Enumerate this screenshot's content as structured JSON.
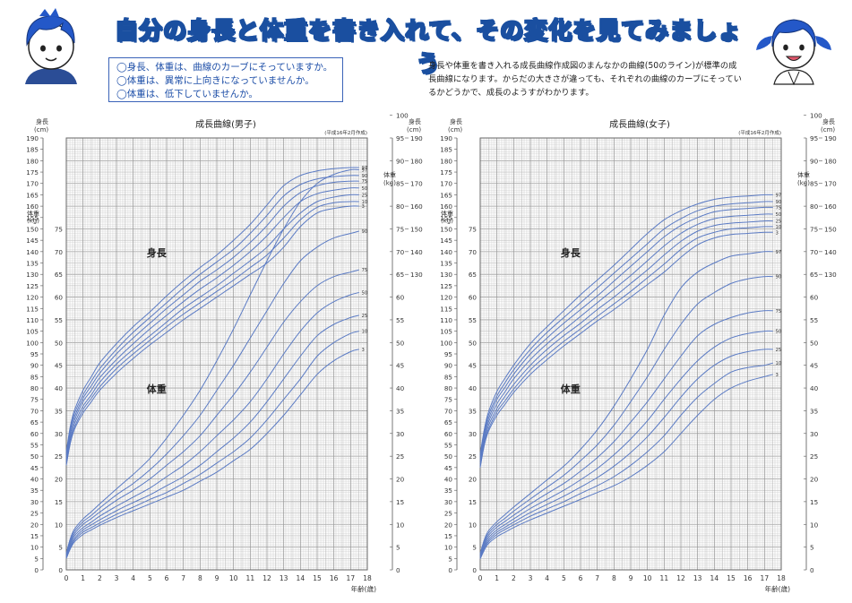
{
  "header": {
    "title": "自分の身長と体重を書き入れて、その変化を見てみましょう",
    "checklist": [
      "◯身長、体重は、曲線のカーブにそっていますか。",
      "◯体重は、異常に上向きになっていませんか。",
      "◯体重は、低下していませんか。"
    ],
    "explanation": "身長や体重を書き入れる成長曲線作成図のまんなかの曲線(50のライン)が標準の成長曲線になります。からだの大きさが違っても、それぞれの曲線のカーブにそっているかどうかで、成長のようすがわかります。",
    "boy_icon": "boy-face-icon",
    "girl_icon": "girl-face-icon"
  },
  "colors": {
    "curve": "#5b7bc4",
    "grid_minor": "#c9c9c9",
    "grid_major": "#9a9a9a",
    "title": "#1a4fa0"
  },
  "chart_data": [
    {
      "type": "line",
      "title": "成長曲線(男子)",
      "note": "(平成16年2月作成)",
      "xlabel": "年齢(歳)",
      "height_axis_label": "身長\n(cm)",
      "weight_axis_label": "体重\n(kg)",
      "height_region_label": "身長",
      "weight_region_label": "体重",
      "xlim": [
        0,
        18
      ],
      "height_ylim": [
        0,
        190
      ],
      "weight_ylim": [
        0,
        75
      ],
      "x_ticks": [
        0,
        1,
        2,
        3,
        4,
        5,
        6,
        7,
        8,
        9,
        10,
        11,
        12,
        13,
        14,
        15,
        16,
        17,
        18
      ],
      "left_outer_ticks": [
        0,
        5,
        10,
        15,
        20,
        25,
        30,
        35,
        40,
        45,
        50,
        55,
        60,
        65,
        70,
        75,
        80,
        85,
        90,
        95,
        100,
        105,
        110,
        115,
        120,
        125,
        130,
        135,
        140,
        145,
        150,
        155,
        160,
        165,
        170,
        175,
        180,
        185,
        190
      ],
      "left_weight_ticks": [
        0,
        5,
        10,
        15,
        20,
        25,
        30,
        35,
        40,
        45,
        50,
        55,
        60,
        65,
        70,
        75
      ],
      "right_weight_ticks": [
        0,
        5,
        10,
        15,
        20,
        25,
        30,
        35,
        40,
        45,
        50,
        55,
        60,
        65,
        70,
        75,
        80,
        85,
        90,
        95,
        100
      ],
      "right_height_ticks": [
        130,
        140,
        150,
        160,
        170,
        180,
        190
      ],
      "x": [
        0,
        0.25,
        0.5,
        1,
        1.5,
        2,
        3,
        4,
        5,
        6,
        7,
        8,
        9,
        10,
        11,
        12,
        13,
        14,
        15,
        16,
        17,
        17.5
      ],
      "height_series": [
        {
          "name": "3",
          "values": [
            46,
            56,
            62,
            69,
            74,
            79,
            86.5,
            93,
            99,
            104.5,
            110,
            115,
            120,
            125,
            130,
            135,
            142,
            151,
            157,
            159,
            160,
            160
          ]
        },
        {
          "name": "10",
          "values": [
            47,
            57,
            63,
            70.5,
            75.5,
            80.5,
            88.5,
            95,
            101,
            107,
            112.5,
            117.5,
            122.5,
            127.5,
            133,
            138.5,
            146,
            154,
            159.5,
            161.5,
            162,
            162
          ]
        },
        {
          "name": "25",
          "values": [
            48,
            58.5,
            64.5,
            72,
            77,
            82.5,
            90.5,
            97,
            103,
            109,
            115,
            120,
            125,
            130.5,
            136,
            142,
            150,
            157,
            162,
            164,
            165,
            165
          ]
        },
        {
          "name": "50",
          "values": [
            49,
            60,
            66,
            74,
            79,
            84.5,
            92.5,
            99.5,
            106,
            112,
            118,
            123.5,
            128.5,
            134,
            140,
            147,
            155,
            162,
            165.5,
            167,
            168,
            168
          ]
        },
        {
          "name": "75",
          "values": [
            50,
            61.5,
            67.5,
            75.5,
            81,
            86.5,
            95,
            102,
            108.5,
            115,
            121,
            127,
            132,
            137.5,
            144,
            151.5,
            160,
            166,
            169,
            170.5,
            171,
            171
          ]
        },
        {
          "name": "90",
          "values": [
            51,
            62.5,
            69,
            77,
            83,
            88.5,
            97,
            104.5,
            111,
            117.5,
            124,
            130,
            135.5,
            141,
            148,
            156,
            164.5,
            169.5,
            172,
            173,
            173.5,
            173.5
          ]
        },
        {
          "name": "97",
          "values": [
            52,
            63.5,
            70.5,
            79,
            85,
            91,
            99.5,
            107,
            113.5,
            120.5,
            127,
            133,
            138.5,
            145,
            152,
            160.5,
            169,
            173.5,
            175.5,
            176.5,
            177,
            177
          ]
        }
      ],
      "weight_series": [
        {
          "name": "3",
          "values": [
            2.5,
            4.7,
            6.2,
            7.8,
            8.8,
            9.8,
            11.5,
            13,
            14.5,
            16,
            17.5,
            19.5,
            21.5,
            24,
            26.5,
            30,
            34,
            38.5,
            43,
            46,
            48,
            48.5
          ]
        },
        {
          "name": "10",
          "values": [
            2.7,
            5,
            6.6,
            8.3,
            9.3,
            10.3,
            12.2,
            13.8,
            15.5,
            17,
            19,
            21,
            23.5,
            26,
            29,
            33,
            37.5,
            42,
            47,
            50,
            52,
            52.5
          ]
        },
        {
          "name": "25",
          "values": [
            2.9,
            5.4,
            7,
            8.8,
            9.9,
            11,
            13,
            14.8,
            16.5,
            18.5,
            20.5,
            23,
            26,
            29,
            32.5,
            37,
            42,
            47,
            51.5,
            54,
            55.5,
            56
          ]
        },
        {
          "name": "50",
          "values": [
            3.1,
            5.8,
            7.5,
            9.3,
            10.5,
            11.8,
            14,
            16,
            18,
            20.5,
            23,
            26,
            29.5,
            33,
            37,
            42,
            47.5,
            52.5,
            56.5,
            59,
            60.5,
            61
          ]
        },
        {
          "name": "75",
          "values": [
            3.3,
            6.2,
            8,
            10,
            11.3,
            12.7,
            15.3,
            17.5,
            20,
            23,
            26,
            29.5,
            34,
            38.5,
            43.5,
            49,
            54.5,
            59,
            62.5,
            64.5,
            65.5,
            66
          ]
        },
        {
          "name": "90",
          "values": [
            3.5,
            6.6,
            8.5,
            10.6,
            12,
            13.6,
            16.5,
            19,
            22,
            25.5,
            29.5,
            34,
            39.5,
            45,
            51,
            57,
            63,
            68,
            71,
            73,
            74,
            74.5
          ]
        },
        {
          "name": "97",
          "values": [
            3.7,
            7,
            9,
            11.2,
            12.8,
            14.5,
            17.8,
            21,
            24.5,
            29,
            34,
            39.5,
            46,
            53,
            60.5,
            68,
            75,
            81,
            85,
            87,
            88,
            88
          ]
        }
      ]
    },
    {
      "type": "line",
      "title": "成長曲線(女子)",
      "note": "(平成16年2月作成)",
      "xlabel": "年齢(歳)",
      "height_axis_label": "身長\n(cm)",
      "weight_axis_label": "体重\n(kg)",
      "height_region_label": "身長",
      "weight_region_label": "体重",
      "xlim": [
        0,
        18
      ],
      "height_ylim": [
        0,
        190
      ],
      "weight_ylim": [
        0,
        75
      ],
      "x_ticks": [
        0,
        1,
        2,
        3,
        4,
        5,
        6,
        7,
        8,
        9,
        10,
        11,
        12,
        13,
        14,
        15,
        16,
        17,
        18
      ],
      "left_outer_ticks": [
        0,
        5,
        10,
        15,
        20,
        25,
        30,
        35,
        40,
        45,
        50,
        55,
        60,
        65,
        70,
        75,
        80,
        85,
        90,
        95,
        100,
        105,
        110,
        115,
        120,
        125,
        130,
        135,
        140,
        145,
        150,
        155,
        160,
        165,
        170,
        175,
        180,
        185,
        190
      ],
      "left_weight_ticks": [
        0,
        5,
        10,
        15,
        20,
        25,
        30,
        35,
        40,
        45,
        50,
        55,
        60,
        65,
        70,
        75
      ],
      "right_weight_ticks": [
        0,
        5,
        10,
        15,
        20,
        25,
        30,
        35,
        40,
        45,
        50,
        55,
        60,
        65,
        70,
        75,
        80,
        85,
        90,
        95,
        100
      ],
      "right_height_ticks": [
        130,
        140,
        150,
        160,
        170,
        180,
        190
      ],
      "x": [
        0,
        0.25,
        0.5,
        1,
        1.5,
        2,
        3,
        4,
        5,
        6,
        7,
        8,
        9,
        10,
        11,
        12,
        13,
        14,
        15,
        16,
        17,
        17.5
      ],
      "height_series": [
        {
          "name": "3",
          "values": [
            45,
            55,
            61,
            68,
            73,
            78,
            86,
            92.5,
            98.5,
            104,
            109.5,
            114.5,
            120,
            125.5,
            131,
            137.5,
            143,
            146,
            147.5,
            148,
            148.5,
            148.5
          ]
        },
        {
          "name": "10",
          "values": [
            46,
            56,
            62,
            69.5,
            74.5,
            79.5,
            88,
            94.5,
            100.5,
            106,
            111.5,
            117,
            122.5,
            128.5,
            134.5,
            141,
            146,
            148.5,
            150,
            150.5,
            151,
            151
          ]
        },
        {
          "name": "25",
          "values": [
            47,
            57,
            63.5,
            71,
            76.5,
            81.5,
            90,
            97,
            103,
            108.5,
            114.5,
            120,
            126,
            132,
            138.5,
            144.5,
            149,
            151.5,
            152.5,
            153,
            153.5,
            153.5
          ]
        },
        {
          "name": "50",
          "values": [
            48,
            58.5,
            65,
            73,
            78.5,
            84,
            92.5,
            99.5,
            105.5,
            111.5,
            117.5,
            123.5,
            129.5,
            136,
            142.5,
            148,
            152,
            154.5,
            155.5,
            156,
            156.5,
            156.5
          ]
        },
        {
          "name": "75",
          "values": [
            49,
            60,
            66.5,
            75,
            80.5,
            86,
            95,
            102,
            108.5,
            114.5,
            120.5,
            127,
            133.5,
            140,
            146.5,
            151.5,
            155,
            157.5,
            158.5,
            159,
            159.5,
            159.5
          ]
        },
        {
          "name": "90",
          "values": [
            50,
            61,
            68,
            76.5,
            82.5,
            88,
            97,
            104.5,
            111,
            117.5,
            124,
            130.5,
            137,
            143.5,
            150,
            154.5,
            158,
            160,
            161,
            161.5,
            162,
            162
          ]
        },
        {
          "name": "97",
          "values": [
            51,
            62,
            69.5,
            78.5,
            84.5,
            90,
            99.5,
            107,
            114,
            121,
            127.5,
            134,
            141,
            148,
            154,
            158,
            161,
            163,
            164,
            164.5,
            165,
            165
          ]
        }
      ],
      "weight_series": [
        {
          "name": "3",
          "values": [
            2.4,
            4.4,
            5.8,
            7.3,
            8.3,
            9.3,
            11,
            12.5,
            14,
            15.5,
            17,
            18.5,
            20.5,
            23,
            26,
            30,
            34,
            37.5,
            40,
            41.5,
            42.5,
            43
          ]
        },
        {
          "name": "10",
          "values": [
            2.6,
            4.8,
            6.2,
            7.8,
            8.9,
            9.9,
            11.8,
            13.4,
            15,
            16.8,
            18.5,
            20.5,
            23,
            26,
            29.5,
            34,
            38,
            41,
            43.5,
            44.5,
            45,
            45.5
          ]
        },
        {
          "name": "25",
          "values": [
            2.8,
            5.1,
            6.6,
            8.3,
            9.4,
            10.5,
            12.6,
            14.4,
            16.2,
            18.2,
            20.3,
            22.8,
            25.8,
            29.3,
            33.5,
            38,
            42,
            45,
            47,
            48,
            48.5,
            48.5
          ]
        },
        {
          "name": "50",
          "values": [
            3,
            5.5,
            7.1,
            8.8,
            10,
            11.2,
            13.5,
            15.5,
            17.5,
            19.8,
            22.3,
            25.3,
            28.8,
            32.8,
            37.5,
            42,
            46,
            49,
            51,
            52,
            52.5,
            52.5
          ]
        },
        {
          "name": "75",
          "values": [
            3.2,
            5.9,
            7.6,
            9.4,
            10.7,
            12,
            14.5,
            16.8,
            19,
            21.7,
            24.7,
            28.2,
            32.5,
            37,
            42,
            47,
            51.5,
            54,
            55.5,
            56.5,
            57,
            57
          ]
        },
        {
          "name": "90",
          "values": [
            3.4,
            6.3,
            8.1,
            10,
            11.4,
            12.9,
            15.6,
            18.2,
            20.8,
            24,
            27.5,
            31.8,
            37,
            42.5,
            48.5,
            54,
            58.5,
            61,
            63,
            64,
            64.5,
            64.5
          ]
        },
        {
          "name": "97",
          "values": [
            3.6,
            6.7,
            8.6,
            10.6,
            12.2,
            13.8,
            16.8,
            19.8,
            22.8,
            26.5,
            30.8,
            36,
            42,
            48.5,
            56,
            62,
            65.5,
            67.5,
            69,
            69.5,
            70,
            70
          ]
        }
      ]
    }
  ]
}
